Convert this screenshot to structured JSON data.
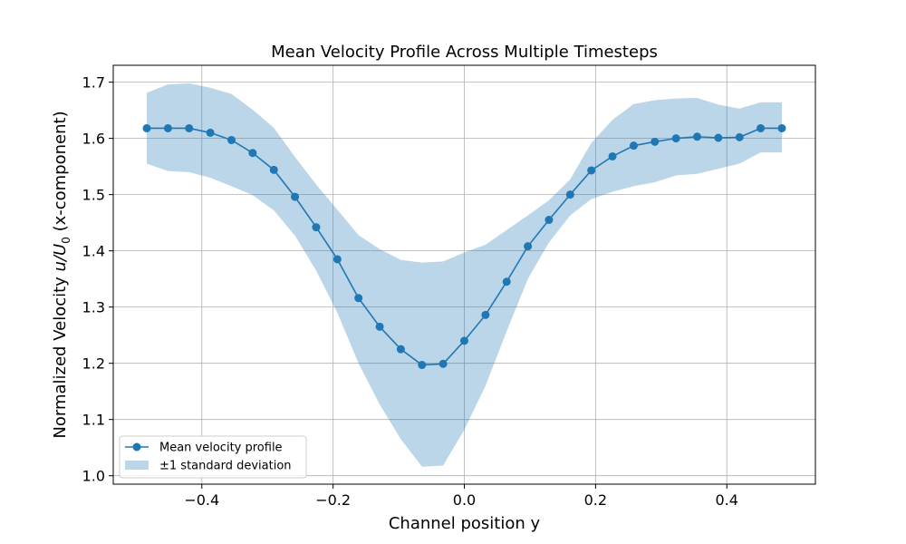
{
  "chart_data": {
    "type": "line",
    "title": "Mean Velocity Profile Across Multiple Timesteps",
    "xlabel": "Channel position y",
    "ylabel_prefix": "Normalized Velocity ",
    "ylabel_math": "u/U",
    "ylabel_sub": "0",
    "ylabel_suffix": " (x-component)",
    "xlim": [
      -0.535,
      0.535
    ],
    "ylim": [
      0.985,
      1.73
    ],
    "xticks": [
      -0.4,
      -0.2,
      0.0,
      0.2,
      0.4
    ],
    "xtick_labels": [
      "−0.4",
      "−0.2",
      "0.0",
      "0.2",
      "0.4"
    ],
    "yticks": [
      1.0,
      1.1,
      1.2,
      1.3,
      1.4,
      1.5,
      1.6,
      1.7
    ],
    "ytick_labels": [
      "1.0",
      "1.1",
      "1.2",
      "1.3",
      "1.4",
      "1.5",
      "1.6",
      "1.7"
    ],
    "grid": true,
    "legend_position": "lower-left",
    "colors": {
      "line": "#1f77b4",
      "band": "#1f77b4",
      "grid": "#b0b0b0"
    },
    "x": [
      -0.4839,
      -0.4516,
      -0.4194,
      -0.3871,
      -0.3548,
      -0.3226,
      -0.2903,
      -0.2581,
      -0.2258,
      -0.1935,
      -0.1613,
      -0.129,
      -0.0968,
      -0.0645,
      -0.0323,
      0.0,
      0.0323,
      0.0645,
      0.0968,
      0.129,
      0.1613,
      0.1935,
      0.2258,
      0.2581,
      0.2903,
      0.3226,
      0.3548,
      0.3871,
      0.4194,
      0.4516,
      0.4839
    ],
    "series": [
      {
        "name": "Mean velocity profile",
        "values": [
          1.618,
          1.618,
          1.618,
          1.61,
          1.597,
          1.574,
          1.544,
          1.496,
          1.442,
          1.385,
          1.316,
          1.265,
          1.225,
          1.197,
          1.199,
          1.24,
          1.286,
          1.345,
          1.408,
          1.455,
          1.5,
          1.543,
          1.568,
          1.587,
          1.594,
          1.6,
          1.603,
          1.601,
          1.602,
          1.618,
          1.618
        ]
      }
    ],
    "band": {
      "name": "±1 standard deviation",
      "lower": [
        1.555,
        1.542,
        1.54,
        1.53,
        1.515,
        1.499,
        1.472,
        1.427,
        1.365,
        1.29,
        1.2,
        1.127,
        1.065,
        1.016,
        1.018,
        1.082,
        1.16,
        1.257,
        1.35,
        1.415,
        1.463,
        1.492,
        1.505,
        1.515,
        1.522,
        1.534,
        1.537,
        1.546,
        1.555,
        1.575,
        1.575
      ],
      "upper": [
        1.681,
        1.696,
        1.698,
        1.69,
        1.679,
        1.651,
        1.619,
        1.567,
        1.518,
        1.473,
        1.428,
        1.403,
        1.384,
        1.379,
        1.381,
        1.397,
        1.411,
        1.437,
        1.463,
        1.49,
        1.527,
        1.592,
        1.633,
        1.661,
        1.668,
        1.671,
        1.672,
        1.66,
        1.653,
        1.664,
        1.664
      ]
    }
  }
}
